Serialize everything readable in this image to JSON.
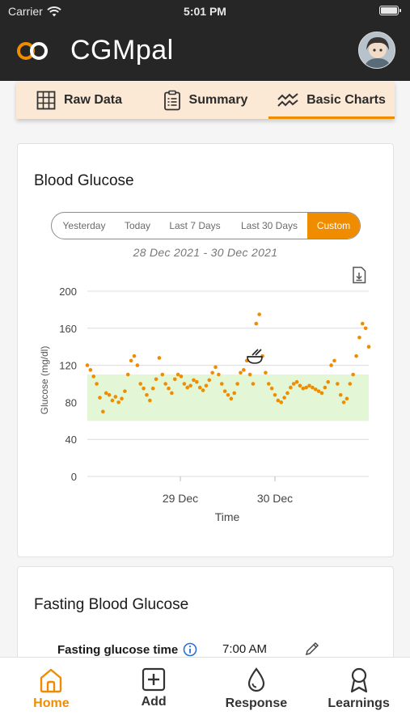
{
  "status_bar": {
    "carrier": "Carrier",
    "time": "5:01 PM"
  },
  "app": {
    "title": "CGMpal",
    "logo_icon": "infinity-logo",
    "brand_color": "#f08c00"
  },
  "top_tabs": [
    {
      "label": "Raw Data",
      "icon": "grid-icon"
    },
    {
      "label": "Summary",
      "icon": "clipboard-icon"
    },
    {
      "label": "Basic Charts",
      "icon": "trend-icon",
      "active": true
    }
  ],
  "glucose_card": {
    "title": "Blood Glucose",
    "ranges": [
      "Yesterday",
      "Today",
      "Last 7 Days",
      "Last 30 Days",
      "Custom"
    ],
    "selected_range": "Custom",
    "date_range": "28 Dec 2021 - 30 Dec 2021"
  },
  "chart_data": {
    "type": "scatter",
    "ylabel": "Glucose (mg/dl)",
    "xlabel": "Time",
    "y_ticks": [
      "200",
      "160",
      "120",
      "80",
      "40",
      "0"
    ],
    "ylim": [
      0,
      200
    ],
    "x_ticks": [
      "29 Dec",
      "30 Dec"
    ],
    "target_range": [
      60,
      110
    ],
    "point_color": "#f08c00",
    "meal_marker_icon": "bowl-icon",
    "x": [
      0.0,
      0.8,
      1.6,
      2.4,
      3.2,
      4.0,
      4.8,
      5.6,
      6.4,
      7.2,
      8.0,
      8.8,
      9.6,
      10.4,
      11.2,
      12.0,
      12.8,
      13.6,
      14.4,
      15.2,
      16.0,
      16.8,
      17.6,
      18.4,
      19.2,
      20.0,
      20.8,
      21.6,
      22.4,
      23.2,
      24.0,
      24.8,
      25.6,
      26.4,
      27.2,
      28.0,
      28.8,
      29.6,
      30.4,
      31.2,
      32.0,
      32.8,
      33.6,
      34.4,
      35.2,
      36.0,
      36.8,
      37.6,
      38.4,
      39.2,
      40.0,
      40.8,
      41.6,
      42.4,
      43.2,
      44.0,
      44.8,
      45.6,
      46.4,
      47.2,
      48.0,
      48.8,
      49.6,
      50.4,
      51.2,
      52.0,
      52.8,
      53.6,
      54.4,
      55.2,
      56.0,
      56.8,
      57.6,
      58.4,
      59.2,
      60.0,
      60.8,
      61.6,
      62.4,
      63.2,
      64.0,
      64.8,
      65.6,
      66.4,
      67.2,
      68.0,
      68.8,
      69.6,
      70.4,
      71.2,
      72.0
    ],
    "series": [
      {
        "values": [
          120,
          115,
          108,
          100,
          85,
          70,
          90,
          88,
          82,
          86,
          80,
          84,
          92,
          110,
          125,
          130,
          120,
          100,
          95,
          88,
          82,
          95,
          105,
          128,
          110,
          100,
          95,
          90,
          105,
          110,
          108,
          100,
          96,
          98,
          104,
          102,
          96,
          93,
          98,
          104,
          112,
          118,
          110,
          100,
          92,
          88,
          84,
          90,
          100,
          112,
          115,
          125,
          110,
          100,
          165,
          175,
          130,
          112,
          100,
          95,
          88,
          82,
          80,
          85,
          90,
          96,
          100,
          102,
          98,
          95,
          96,
          98,
          96,
          94,
          92,
          90,
          96,
          102,
          120,
          125,
          100,
          88,
          80,
          84,
          100,
          110,
          130,
          150,
          165,
          160,
          140
        ]
      }
    ]
  },
  "fasting_card": {
    "title": "Fasting Blood Glucose",
    "label": "Fasting glucose time",
    "value": "7:00 AM"
  },
  "bottom_nav": [
    {
      "label": "Home",
      "icon": "home-icon",
      "active": true
    },
    {
      "label": "Add",
      "icon": "add-icon"
    },
    {
      "label": "Response",
      "icon": "drop-icon"
    },
    {
      "label": "Learnings",
      "icon": "award-icon"
    }
  ]
}
